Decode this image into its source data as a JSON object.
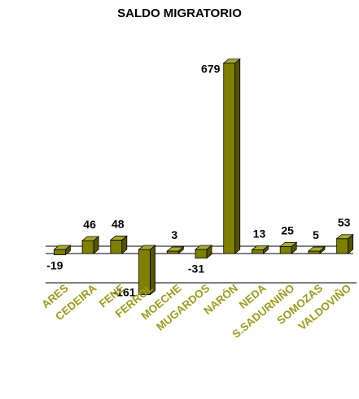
{
  "chart_data": {
    "type": "bar",
    "title": "SALDO MIGRATORIO",
    "categories": [
      "ARES",
      "CEDEIRA",
      "FENE",
      "FERROL",
      "MOECHE",
      "MUGARDOS",
      "NARÓN",
      "NEDA",
      "S.SADURNIÑO",
      "SOMOZAS",
      "VALDOVIÑO"
    ],
    "values": [
      -19,
      46,
      48,
      -161,
      3,
      -31,
      679,
      13,
      25,
      5,
      53
    ],
    "data_labels": [
      "-19",
      "46",
      "48",
      "-161",
      "3",
      "-31",
      "679",
      "13",
      "25",
      "5",
      "53"
    ],
    "xlabel": "",
    "ylabel": "",
    "ylim": [
      -161,
      679
    ],
    "grid": false,
    "legend": "none",
    "three_d": true
  },
  "colors": {
    "bar_front": "#808000",
    "bar_top": "#a9a931",
    "bar_side": "#545400",
    "tick_label": "#9c9c1a",
    "axis": "#000000"
  }
}
